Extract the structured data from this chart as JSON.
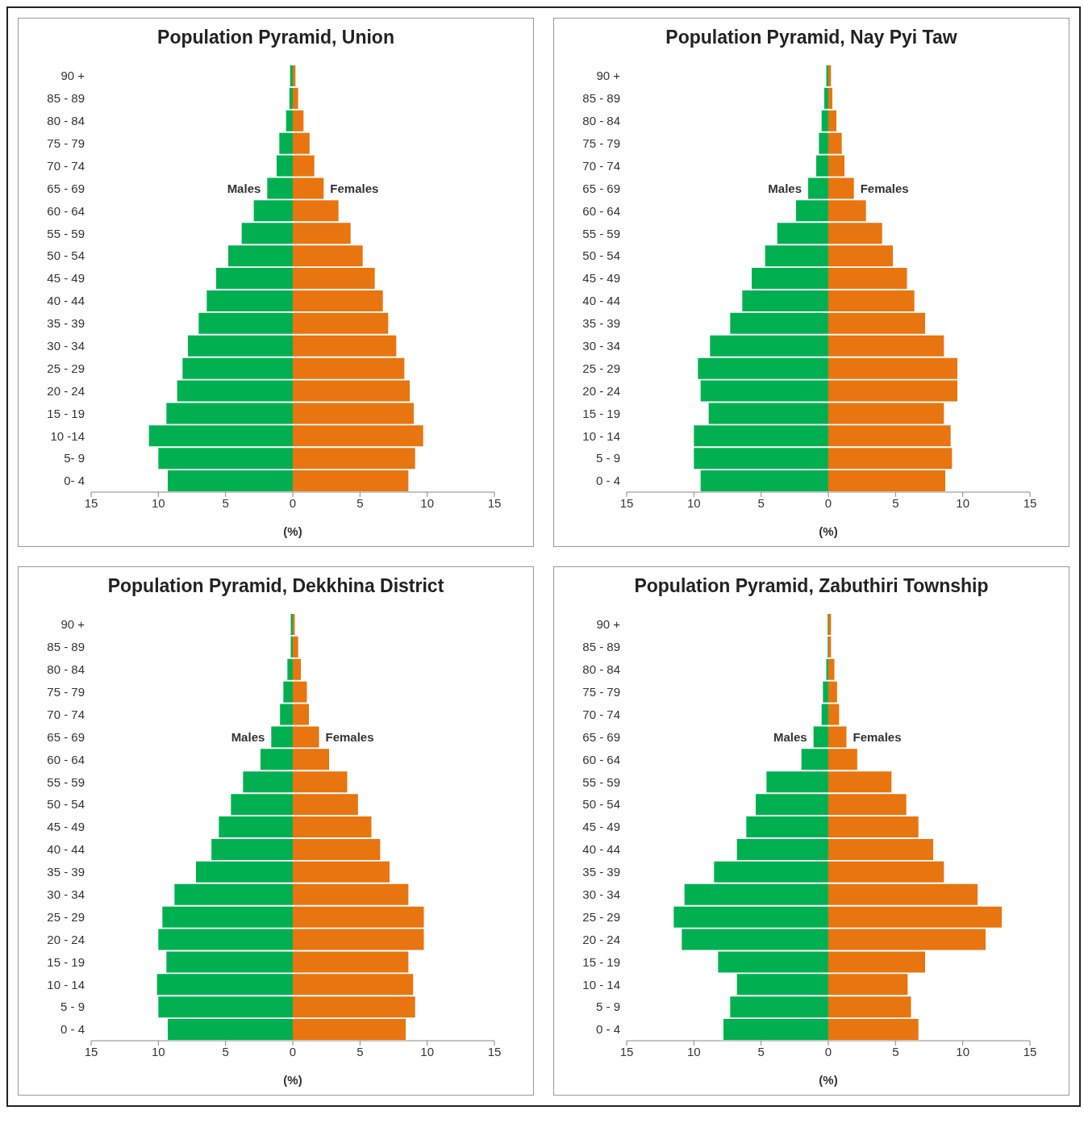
{
  "chart_data": [
    {
      "type": "bar",
      "orientation": "horizontal",
      "stacked": true,
      "title": "Population Pyramid, Union",
      "xlabel": "(%)",
      "categories": [
        "90 +",
        "85 - 89",
        "80 - 84",
        "75 - 79",
        "70 - 74",
        "65 - 69",
        "60 - 64",
        "55 - 59",
        "50 - 54",
        "45 - 49",
        "40 - 44",
        "35 - 39",
        "30 - 34",
        "25 - 29",
        "20 - 24",
        "15 - 19",
        "10 -14",
        "5- 9",
        "0- 4"
      ],
      "series": [
        {
          "name": "Males",
          "color": "#00b050",
          "values": [
            -0.2,
            -0.25,
            -0.5,
            -1.0,
            -1.2,
            -1.9,
            -2.9,
            -3.8,
            -4.8,
            -5.7,
            -6.4,
            -7.0,
            -7.8,
            -8.2,
            -8.6,
            -9.4,
            -10.7,
            -10.0,
            -9.3
          ]
        },
        {
          "name": "Females",
          "color": "#e8750f",
          "values": [
            0.2,
            0.4,
            0.8,
            1.25,
            1.6,
            2.3,
            3.4,
            4.3,
            5.2,
            6.1,
            6.7,
            7.1,
            7.7,
            8.3,
            8.7,
            9.0,
            9.7,
            9.1,
            8.6
          ]
        }
      ],
      "xlim": [
        -15,
        15
      ],
      "xticks": [
        {
          "value": -15,
          "label": "15"
        },
        {
          "value": -10,
          "label": "10"
        },
        {
          "value": -5,
          "label": "5"
        },
        0,
        5,
        10,
        15
      ],
      "grid": false,
      "legend": false
    },
    {
      "type": "bar",
      "orientation": "horizontal",
      "stacked": true,
      "title": "Population Pyramid, Nay Pyi Taw",
      "xlabel": "(%)",
      "categories": [
        "90 +",
        "85 - 89",
        "80 - 84",
        "75 - 79",
        "70 - 74",
        "65 - 69",
        "60 - 64",
        "55 - 59",
        "50 - 54",
        "45 - 49",
        "40 - 44",
        "35 - 39",
        "30 - 34",
        "25 - 29",
        "20 - 24",
        "15 - 19",
        "10 - 14",
        "5 - 9",
        "0 - 4"
      ],
      "series": [
        {
          "name": "Males",
          "color": "#00b050",
          "values": [
            -0.15,
            -0.3,
            -0.5,
            -0.7,
            -0.9,
            -1.5,
            -2.4,
            -3.8,
            -4.7,
            -5.7,
            -6.4,
            -7.3,
            -8.8,
            -9.7,
            -9.5,
            -8.9,
            -10.0,
            -10.0,
            -9.5
          ]
        },
        {
          "name": "Females",
          "color": "#e8750f",
          "values": [
            0.2,
            0.3,
            0.6,
            1.0,
            1.2,
            1.9,
            2.8,
            4.0,
            4.8,
            5.85,
            6.4,
            7.2,
            8.6,
            9.6,
            9.6,
            8.6,
            9.1,
            9.2,
            8.7
          ]
        }
      ],
      "xlim": [
        -15,
        15
      ],
      "xticks": [
        {
          "value": -15,
          "label": "15"
        },
        {
          "value": -10,
          "label": "10"
        },
        {
          "value": -5,
          "label": "5"
        },
        0,
        5,
        10,
        15
      ],
      "grid": false,
      "legend": false
    },
    {
      "type": "bar",
      "orientation": "horizontal",
      "stacked": true,
      "title": "Population Pyramid, Dekkhina District",
      "xlabel": "(%)",
      "categories": [
        "90 +",
        "85 - 89",
        "80 - 84",
        "75 - 79",
        "70 - 74",
        "65 - 69",
        "60 - 64",
        "55 - 59",
        "50 - 54",
        "45 - 49",
        "40 - 44",
        "35 - 39",
        "30 - 34",
        "25 - 29",
        "20 - 24",
        "15 - 19",
        "10 - 14",
        "5 - 9",
        "0 - 4"
      ],
      "series": [
        {
          "name": "Males",
          "color": "#00b050",
          "values": [
            -0.15,
            -0.15,
            -0.4,
            -0.7,
            -0.95,
            -1.6,
            -2.4,
            -3.7,
            -4.6,
            -5.5,
            -6.05,
            -7.2,
            -8.8,
            -9.7,
            -10.0,
            -9.4,
            -10.1,
            -10.0,
            -9.3
          ]
        },
        {
          "name": "Females",
          "color": "#e8750f",
          "values": [
            0.15,
            0.4,
            0.6,
            1.05,
            1.2,
            1.95,
            2.7,
            4.05,
            4.85,
            5.85,
            6.5,
            7.2,
            8.6,
            9.75,
            9.75,
            8.6,
            8.95,
            9.1,
            8.4
          ]
        }
      ],
      "xlim": [
        -15,
        15
      ],
      "xticks": [
        {
          "value": -15,
          "label": "15"
        },
        {
          "value": -10,
          "label": "10"
        },
        {
          "value": -5,
          "label": "5"
        },
        0,
        5,
        10,
        15
      ],
      "grid": false,
      "legend": false
    },
    {
      "type": "bar",
      "orientation": "horizontal",
      "stacked": true,
      "title": "Population Pyramid, Zabuthiri Township",
      "xlabel": "(%)",
      "categories": [
        "90 +",
        "85 - 89",
        "80 - 84",
        "75 - 79",
        "70 - 74",
        "65 - 69",
        "60 - 64",
        "55 - 59",
        "50 - 54",
        "45 - 49",
        "40 - 44",
        "35 - 39",
        "30 - 34",
        "25 - 29",
        "20 - 24",
        "15 - 19",
        "10 - 14",
        "5 - 9",
        "0 - 4"
      ],
      "series": [
        {
          "name": "Males",
          "color": "#00b050",
          "values": [
            -0.05,
            -0.05,
            -0.15,
            -0.4,
            -0.5,
            -1.1,
            -2.0,
            -4.6,
            -5.4,
            -6.1,
            -6.8,
            -8.5,
            -10.7,
            -11.5,
            -10.9,
            -8.2,
            -6.8,
            -7.3,
            -7.8
          ]
        },
        {
          "name": "Females",
          "color": "#e8750f",
          "values": [
            0.2,
            0.2,
            0.45,
            0.65,
            0.8,
            1.35,
            2.15,
            4.7,
            5.8,
            6.7,
            7.8,
            8.6,
            11.1,
            12.9,
            11.7,
            7.2,
            5.9,
            6.15,
            6.7
          ]
        }
      ],
      "xlim": [
        -15,
        15
      ],
      "xticks": [
        {
          "value": -15,
          "label": "15"
        },
        {
          "value": -10,
          "label": "10"
        },
        {
          "value": -5,
          "label": "5"
        },
        0,
        5,
        10,
        15
      ],
      "grid": false,
      "legend": false
    }
  ]
}
